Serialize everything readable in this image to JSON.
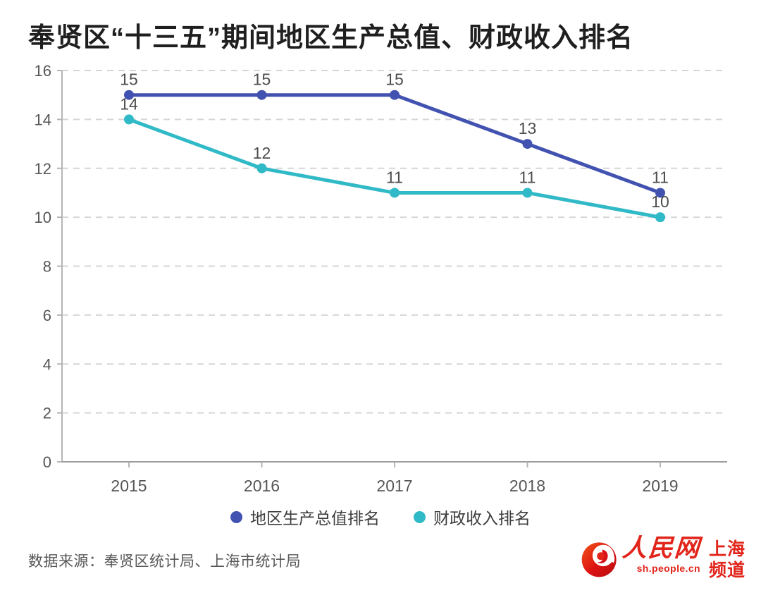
{
  "title": "奉贤区“十三五”期间地区生产总值、财政收入排名",
  "source": "数据来源：奉贤区统计局、上海市统计局",
  "branding": {
    "site_name": "人民网",
    "site_url": "sh.people.cn",
    "channel_line1": "上海",
    "channel_line2": "频道",
    "brand_color": "#e1251b"
  },
  "chart_data": {
    "type": "line",
    "title": "奉贤区“十三五”期间地区生产总值、财政收入排名",
    "categories": [
      "2015",
      "2016",
      "2017",
      "2018",
      "2019"
    ],
    "series": [
      {
        "name": "地区生产总值排名",
        "color": "#4252b0",
        "values": [
          15,
          15,
          15,
          13,
          11
        ]
      },
      {
        "name": "财政收入排名",
        "color": "#30b9c6",
        "values": [
          14,
          12,
          11,
          11,
          10
        ]
      }
    ],
    "xlabel": "",
    "ylabel": "",
    "ylim": [
      0,
      16
    ],
    "ytick_step": 2,
    "yticks": [
      0,
      2,
      4,
      6,
      8,
      10,
      12,
      14,
      16
    ],
    "grid": "horizontal-dashed",
    "legend_position": "bottom",
    "data_labels": "above-points",
    "colors": {
      "gridline": "#d6d6d6",
      "y_axis": "#b5b5b5",
      "x_axis": "#9c9c9c",
      "tick_label": "#565656",
      "data_label": "#4d4d4d"
    }
  }
}
